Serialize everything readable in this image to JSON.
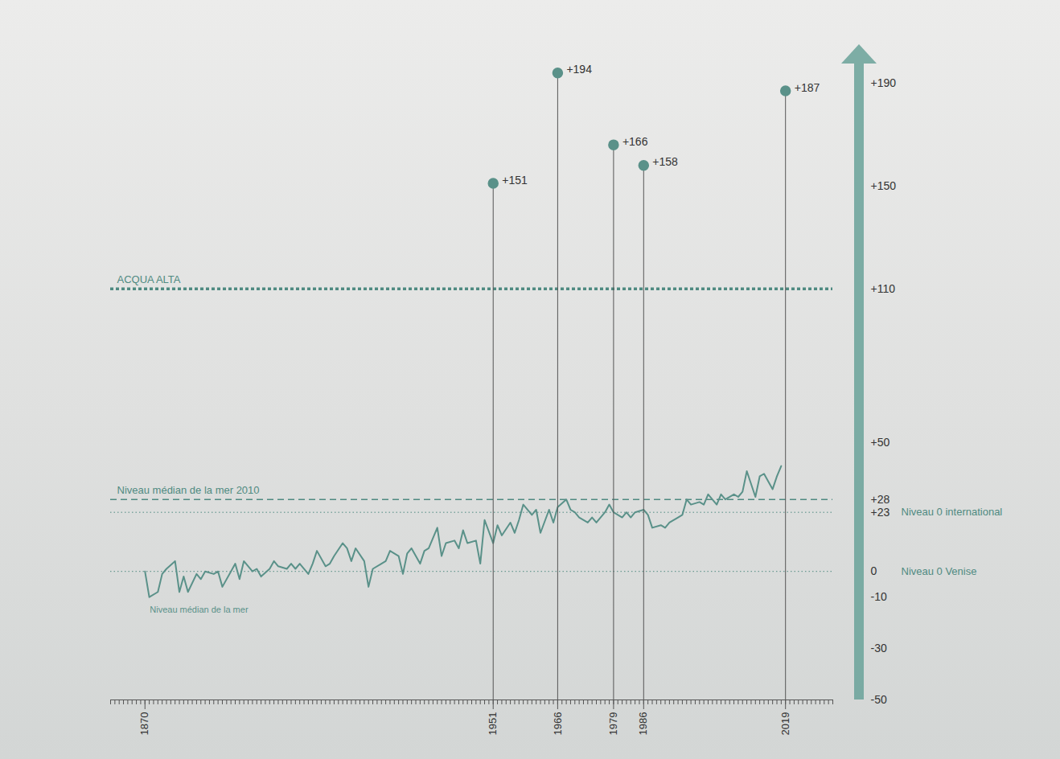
{
  "chart_data": {
    "type": "line",
    "color": "#4f8a81",
    "grid": false,
    "xlim": [
      1862,
      2030
    ],
    "ylim": [
      -50,
      205
    ],
    "xticks": [
      1870,
      1951,
      1966,
      1979,
      1986,
      2019
    ],
    "yticks": [
      {
        "value": 190,
        "label": "+190"
      },
      {
        "value": 150,
        "label": "+150"
      },
      {
        "value": 110,
        "label": "+110"
      },
      {
        "value": 50,
        "label": "+50"
      },
      {
        "value": 28,
        "label": "+28"
      },
      {
        "value": 23,
        "label": "+23"
      },
      0,
      -10,
      -30,
      -50
    ],
    "x": [
      1870,
      1871,
      1873,
      1874,
      1875,
      1877,
      1878,
      1879,
      1880,
      1882,
      1883,
      1884,
      1886,
      1887,
      1888,
      1890,
      1891,
      1892,
      1893,
      1895,
      1896,
      1897,
      1899,
      1900,
      1901,
      1903,
      1904,
      1905,
      1906,
      1908,
      1909,
      1910,
      1912,
      1913,
      1914,
      1916,
      1917,
      1918,
      1919,
      1921,
      1922,
      1923,
      1925,
      1926,
      1927,
      1929,
      1930,
      1931,
      1932,
      1934,
      1935,
      1936,
      1938,
      1939,
      1940,
      1942,
      1943,
      1944,
      1945,
      1947,
      1948,
      1949,
      1951,
      1952,
      1953,
      1955,
      1956,
      1957,
      1958,
      1960,
      1961,
      1962,
      1964,
      1965,
      1966,
      1968,
      1969,
      1970,
      1971,
      1973,
      1974,
      1975,
      1977,
      1978,
      1979,
      1981,
      1982,
      1983,
      1984,
      1986,
      1987,
      1988,
      1990,
      1991,
      1992,
      1994,
      1995,
      1996,
      1997,
      1999,
      2000,
      2001,
      2003,
      2004,
      2005,
      2007,
      2008,
      2009,
      2010,
      2012,
      2013,
      2014,
      2016,
      2017,
      2018
    ],
    "series": [
      {
        "name": "Niveau médian de la mer",
        "color": "#5a9189",
        "line_style": "solid",
        "values": [
          0,
          -10,
          -8,
          -1,
          1,
          4,
          -8,
          -2,
          -8,
          -1,
          -3,
          0,
          -1,
          0,
          -6,
          0,
          3,
          -3,
          4,
          0,
          1,
          -2,
          1,
          4,
          2,
          1,
          3,
          1,
          3,
          -1,
          3,
          8,
          2,
          3,
          6,
          11,
          9,
          4,
          9,
          4,
          -6,
          1,
          3,
          4,
          8,
          6,
          -1,
          7,
          9,
          3,
          8,
          9,
          17,
          6,
          11,
          12,
          9,
          16,
          11,
          12,
          3,
          20,
          11,
          18,
          14,
          19,
          15,
          20,
          26,
          22,
          24,
          15,
          24,
          19,
          25,
          28,
          24,
          23,
          21,
          19,
          21,
          19,
          23,
          26,
          23,
          21,
          23,
          21,
          23,
          24,
          22,
          17,
          18,
          17,
          19,
          21,
          22,
          28,
          26,
          27,
          26,
          30,
          26,
          30,
          28,
          30,
          29,
          31,
          39,
          29,
          37,
          38,
          32,
          37,
          41
        ]
      }
    ],
    "events": {
      "x": [
        1951,
        1966,
        1979,
        1986,
        2019
      ],
      "values": [
        151,
        194,
        166,
        158,
        187
      ],
      "value_labels": [
        "+151",
        "+194",
        "+166",
        "+158",
        "+187"
      ],
      "color": "#5a9189",
      "marker": "circle",
      "data_labels": true
    },
    "thresholds": [
      {
        "value": 110,
        "label": "ACQUA ALTA",
        "line_style": "dotted"
      },
      {
        "value": 28,
        "label": "Niveau médian de la mer 2010",
        "line_style": "dashed"
      }
    ],
    "datums": [
      {
        "value": 23,
        "label": "Niveau 0 international",
        "line_style": "dotted"
      },
      {
        "value": 0,
        "label": "Niveau 0 Venise",
        "line_style": "dotted"
      }
    ]
  }
}
